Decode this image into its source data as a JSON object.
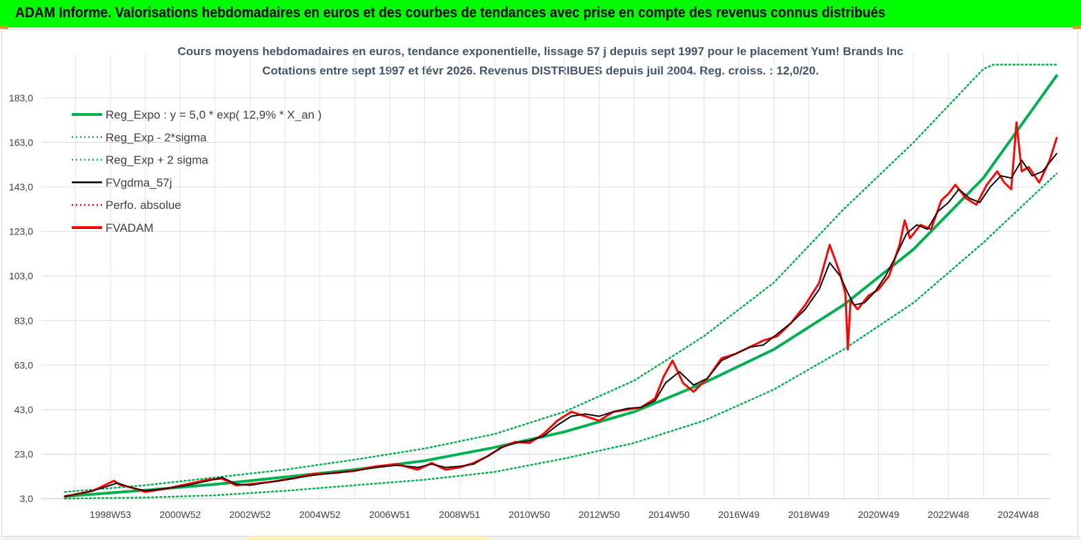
{
  "header": {
    "title": "ADAM Informe. Valorisations hebdomadaires en euros et des courbes de tendances avec prise en compte des revenus connus distribués"
  },
  "colors": {
    "banner": "#00ff00",
    "trend": "#00b050",
    "fvgdma": "#000000",
    "fvadam": "#ff0000",
    "title_text": "#44546a"
  },
  "chart_data": {
    "type": "line",
    "title_line1": "Cours moyens hebdomadaires en euros, tendance exponentielle, lissage 57 j depuis sept 1997 pour le placement Yum! Brands Inc",
    "title_line2": "Cotations entre sept 1997 et févr 2026. Revenus DISTRIBUES depuis juil 2004. Reg. croiss. : 12,0/20.",
    "xlabel": "",
    "ylabel": "",
    "x_range": [
      1997.7,
      2026.1
    ],
    "ylim": [
      3.0,
      198.0
    ],
    "y_ticks": [
      "3,0",
      "23,0",
      "43,0",
      "63,0",
      "83,0",
      "103,0",
      "123,0",
      "143,0",
      "163,0",
      "183,0"
    ],
    "y_tick_values": [
      3,
      23,
      43,
      63,
      83,
      103,
      123,
      143,
      163,
      183
    ],
    "x_ticks": [
      "1998W53",
      "2000W52",
      "2002W52",
      "2004W52",
      "2006W51",
      "2008W51",
      "2010W50",
      "2012W50",
      "2014W50",
      "2016W49",
      "2018W49",
      "2020W49",
      "2022W48",
      "2024W48"
    ],
    "x_tick_years": [
      1999.0,
      2001.0,
      2003.0,
      2005.0,
      2007.0,
      2009.0,
      2011.0,
      2013.0,
      2015.0,
      2017.0,
      2019.0,
      2021.0,
      2023.0,
      2025.0
    ],
    "grid": "both",
    "legend_position": "top-left",
    "legend": [
      {
        "label": "Reg_Expo : y = 5,0 * exp( 12,9% *  X_an )",
        "color": "#00b050",
        "style": "solid-thick"
      },
      {
        "label": "Reg_Exp - 2*sigma",
        "color": "#00b050",
        "style": "dotted"
      },
      {
        "label": "Reg_Exp + 2 sigma",
        "color": "#00b050",
        "style": "dotted"
      },
      {
        "label": "FVgdma_57j",
        "color": "#000000",
        "style": "solid"
      },
      {
        "label": "Perfo. absolue",
        "color": "#ff0000",
        "style": "dotted"
      },
      {
        "label": "FVADAM",
        "color": "#ff0000",
        "style": "solid-thick"
      }
    ],
    "series": [
      {
        "name": "Reg_Expo : y = 5,0 * exp( 12,9% *  X_an )",
        "x": [
          1997.7,
          2000.0,
          2002.0,
          2004.0,
          2006.0,
          2008.0,
          2010.0,
          2012.0,
          2014.0,
          2016.0,
          2018.0,
          2020.0,
          2022.0,
          2024.0,
          2026.1
        ],
        "values": [
          4.0,
          6.8,
          9.4,
          12.7,
          16.0,
          20.0,
          26.0,
          33.0,
          42.0,
          55.0,
          70.0,
          90.0,
          115.0,
          147.0,
          193.0
        ]
      },
      {
        "name": "Reg_Exp - 2*sigma",
        "x": [
          1997.7,
          2000.0,
          2002.0,
          2004.0,
          2006.0,
          2008.0,
          2010.0,
          2012.0,
          2014.0,
          2016.0,
          2018.0,
          2020.0,
          2022.0,
          2024.0,
          2026.1
        ],
        "values": [
          3.0,
          3.5,
          4.5,
          6.5,
          9.0,
          11.5,
          15.0,
          21.0,
          28.0,
          38.0,
          52.0,
          70.0,
          91.0,
          118.0,
          149.0
        ]
      },
      {
        "name": "Reg_Exp + 2 sigma",
        "x": [
          1997.7,
          2000.0,
          2002.0,
          2004.0,
          2006.0,
          2008.0,
          2010.0,
          2012.0,
          2014.0,
          2016.0,
          2018.0,
          2020.0,
          2022.0,
          2024.0,
          2024.3,
          2026.1
        ],
        "values": [
          6.0,
          9.0,
          12.5,
          16.0,
          20.5,
          25.5,
          32.0,
          42.0,
          56.0,
          76.0,
          100.0,
          133.0,
          163.0,
          196.0,
          198.0,
          198.0
        ]
      },
      {
        "name": "FVgdma_57j",
        "x": [
          1997.7,
          1998.5,
          1999.2,
          1999.6,
          2000.0,
          2000.6,
          2001.2,
          2001.8,
          2002.2,
          2002.6,
          2003.0,
          2003.6,
          2004.2,
          2004.8,
          2005.4,
          2006.0,
          2006.6,
          2007.2,
          2007.8,
          2008.2,
          2008.6,
          2009.0,
          2009.4,
          2009.8,
          2010.2,
          2010.6,
          2011.0,
          2011.4,
          2011.8,
          2012.2,
          2012.6,
          2013.0,
          2013.4,
          2013.8,
          2014.2,
          2014.6,
          2014.9,
          2015.3,
          2015.7,
          2016.1,
          2016.5,
          2016.9,
          2017.3,
          2017.7,
          2018.1,
          2018.5,
          2018.9,
          2019.3,
          2019.6,
          2019.9,
          2020.1,
          2020.3,
          2020.6,
          2020.9,
          2021.2,
          2021.5,
          2021.8,
          2022.1,
          2022.4,
          2022.7,
          2023.0,
          2023.3,
          2023.6,
          2023.9,
          2024.2,
          2024.5,
          2024.8,
          2025.1,
          2025.4,
          2025.7,
          2026.1
        ],
        "values": [
          4.0,
          6.5,
          10.0,
          8.0,
          6.5,
          7.5,
          9.0,
          11.0,
          12.5,
          9.5,
          9.0,
          10.5,
          12.0,
          13.5,
          14.5,
          15.5,
          17.0,
          18.0,
          17.0,
          18.5,
          17.0,
          17.5,
          18.5,
          22.0,
          26.0,
          28.0,
          29.0,
          31.0,
          36.0,
          40.0,
          41.0,
          40.0,
          42.0,
          43.5,
          44.0,
          47.0,
          55.0,
          60.0,
          54.0,
          57.0,
          65.0,
          68.0,
          71.0,
          72.0,
          77.0,
          82.0,
          88.0,
          97.0,
          109.0,
          103.0,
          96.0,
          90.0,
          91.0,
          96.0,
          103.0,
          112.0,
          122.0,
          126.0,
          124.0,
          132.0,
          136.0,
          142.0,
          138.0,
          136.0,
          143.0,
          148.0,
          147.0,
          155.0,
          148.0,
          150.0,
          158.0
        ]
      },
      {
        "name": "FVADAM",
        "x": [
          1997.7,
          1998.5,
          1999.1,
          1999.3,
          1999.6,
          2000.0,
          2000.6,
          2001.2,
          2001.8,
          2002.2,
          2002.6,
          2003.0,
          2003.6,
          2004.2,
          2004.8,
          2005.4,
          2006.0,
          2006.6,
          2007.2,
          2007.8,
          2008.2,
          2008.6,
          2009.0,
          2009.4,
          2009.8,
          2010.2,
          2010.6,
          2011.0,
          2011.4,
          2011.8,
          2012.2,
          2012.6,
          2013.0,
          2013.4,
          2013.8,
          2014.2,
          2014.6,
          2014.85,
          2015.1,
          2015.4,
          2015.7,
          2016.1,
          2016.5,
          2016.9,
          2017.3,
          2017.7,
          2018.1,
          2018.5,
          2018.9,
          2019.3,
          2019.6,
          2019.9,
          2020.05,
          2020.12,
          2020.2,
          2020.4,
          2020.7,
          2021.0,
          2021.3,
          2021.6,
          2021.75,
          2021.9,
          2022.2,
          2022.5,
          2022.8,
          2023.0,
          2023.2,
          2023.5,
          2023.8,
          2024.1,
          2024.4,
          2024.6,
          2024.8,
          2024.95,
          2025.1,
          2025.3,
          2025.6,
          2025.9,
          2026.1
        ],
        "values": [
          4.0,
          6.5,
          11.0,
          9.0,
          8.0,
          6.0,
          7.5,
          9.5,
          11.5,
          12.0,
          9.0,
          9.5,
          10.5,
          12.0,
          14.0,
          14.5,
          15.5,
          17.5,
          18.5,
          16.0,
          19.0,
          16.0,
          17.0,
          19.0,
          22.0,
          26.0,
          28.5,
          28.0,
          32.0,
          38.0,
          42.0,
          40.0,
          38.0,
          42.0,
          43.0,
          44.0,
          48.0,
          58.0,
          65.0,
          55.0,
          51.0,
          57.0,
          66.0,
          68.0,
          71.0,
          74.0,
          76.0,
          82.0,
          90.0,
          100.0,
          117.0,
          104.0,
          95.0,
          70.0,
          92.0,
          88.0,
          94.0,
          97.0,
          103.0,
          117.0,
          128.0,
          120.0,
          126.0,
          124.0,
          137.0,
          140.0,
          144.0,
          138.0,
          135.0,
          144.0,
          150.0,
          145.0,
          142.0,
          172.0,
          150.0,
          152.0,
          145.0,
          155.0,
          165.0
        ]
      }
    ]
  }
}
